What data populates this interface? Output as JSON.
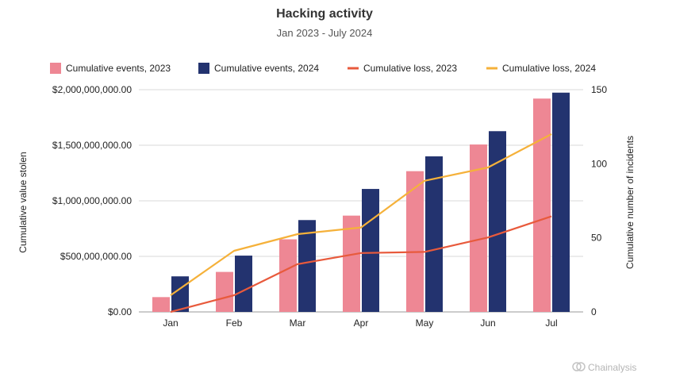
{
  "chart_data": {
    "type": "bar",
    "title": "Hacking activity",
    "subtitle": "Jan 2023 - July 2024",
    "categories": [
      "Jan",
      "Feb",
      "Mar",
      "Apr",
      "May",
      "Jun",
      "Jul"
    ],
    "series": [
      {
        "name": "Cumulative events, 2023",
        "type": "bar",
        "axis": "right",
        "color": "#ee8794",
        "values": [
          10,
          27,
          49,
          65,
          95,
          113,
          144
        ]
      },
      {
        "name": "Cumulative events, 2024",
        "type": "bar",
        "axis": "right",
        "color": "#23336f",
        "values": [
          24,
          38,
          62,
          83,
          105,
          122,
          148
        ]
      },
      {
        "name": "Cumulative loss, 2023",
        "type": "line",
        "axis": "left",
        "color": "#e85a3c",
        "values": [
          0,
          150000000,
          430000000,
          530000000,
          540000000,
          670000000,
          860000000
        ]
      },
      {
        "name": "Cumulative loss, 2024",
        "type": "line",
        "axis": "left",
        "color": "#f5b13a",
        "values": [
          150000000,
          550000000,
          700000000,
          760000000,
          1180000000,
          1300000000,
          1600000000
        ]
      }
    ],
    "ylabel": "Cumulative value stolen",
    "ylabel_right": "Cumulative number of incidents",
    "ylim": [
      0,
      2000000000
    ],
    "ylim_right": [
      0,
      150
    ],
    "yticks": [
      "$0.00",
      "$500,000,000.00",
      "$1,000,000,000.00",
      "$1,500,000,000.00",
      "$2,000,000,000.00"
    ],
    "yticks_right": [
      "0",
      "50",
      "100",
      "150"
    ],
    "grid": true,
    "legend_position": "top"
  },
  "watermark": {
    "brand": "Chainalysis",
    "icon": "chainalysis-logo-icon"
  }
}
